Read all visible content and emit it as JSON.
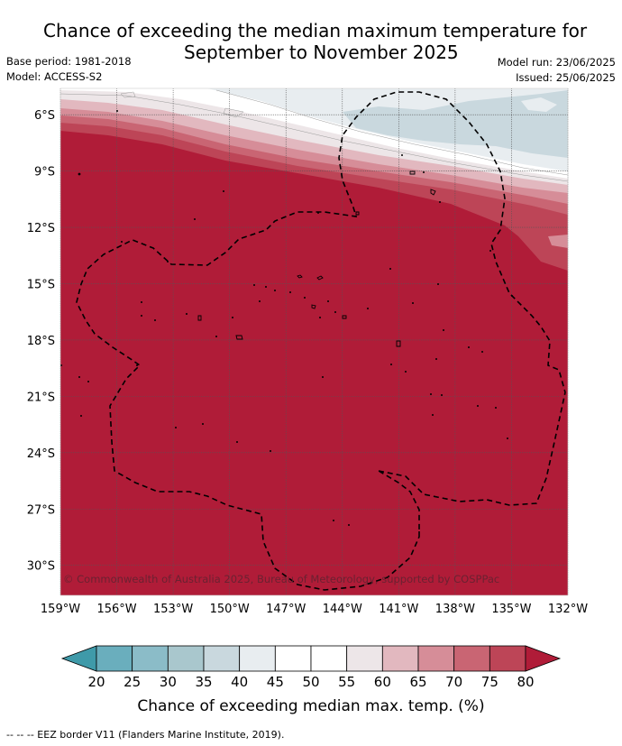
{
  "title": {
    "line1": "Chance of exceeding the median maximum temperature for",
    "line2": "September to November 2025"
  },
  "meta_left": {
    "base_period": "Base period: 1981-2018",
    "model": "Model: ACCESS-S2"
  },
  "meta_right": {
    "model_run": "Model run: 23/06/2025",
    "issued": "Issued: 25/06/2025"
  },
  "map": {
    "lat_labels": [
      "6°S",
      "9°S",
      "12°S",
      "15°S",
      "18°S",
      "21°S",
      "24°S",
      "27°S",
      "30°S"
    ],
    "lat_values": [
      -6,
      -9,
      -12,
      -15,
      -18,
      -21,
      -24,
      -27,
      -30
    ],
    "lon_labels": [
      "159°W",
      "156°W",
      "153°W",
      "150°W",
      "147°W",
      "144°W",
      "141°W",
      "138°W",
      "135°W",
      "132°W"
    ],
    "lon_values": [
      -159,
      -156,
      -153,
      -150,
      -147,
      -144,
      -141,
      -138,
      -135,
      -132
    ],
    "lat_range": [
      -31.6,
      -4.6
    ],
    "lon_range": [
      -159,
      -132
    ],
    "copyright": "© Commonwealth of Australia 2025, Bureau of Meteorology, supported by COSPPac",
    "dominant_category": "80+",
    "border": "dashed EEZ outline"
  },
  "colorbar": {
    "ticks": [
      "20",
      "25",
      "30",
      "35",
      "40",
      "45",
      "50",
      "55",
      "60",
      "65",
      "70",
      "75",
      "80"
    ],
    "colors": [
      "#3f9aa9",
      "#6aaebd",
      "#8bbcc8",
      "#a9c7cd",
      "#c9d8de",
      "#e8edf0",
      "#ffffff",
      "#ffffff",
      "#ede6e8",
      "#e2b8bf",
      "#d68d98",
      "#c96573",
      "#bd4557",
      "#b01c38"
    ],
    "label": "Chance of exceeding median max. temp. (%)"
  },
  "footer": {
    "legend_text": "-- -- -- EEZ border V11 (Flanders Marine Institute, 2019)."
  }
}
